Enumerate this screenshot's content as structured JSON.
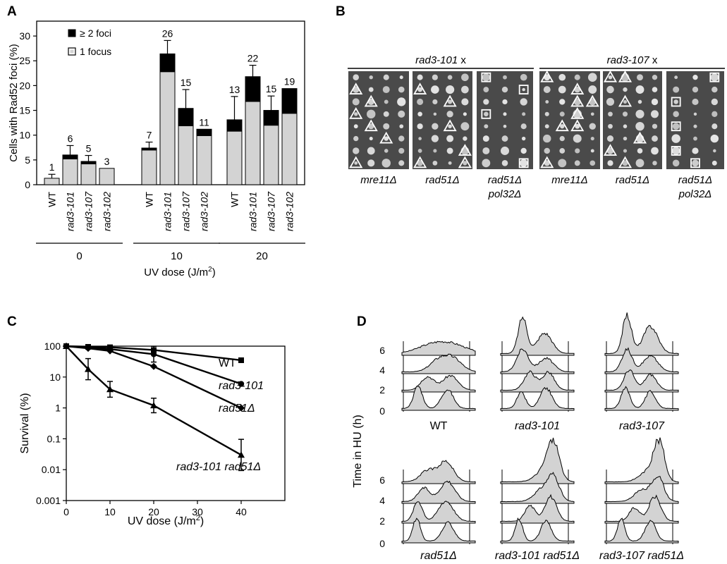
{
  "panel_letters": [
    "A",
    "B",
    "C",
    "D"
  ],
  "chart_data": [
    {
      "panel": "A",
      "type": "bar",
      "ylabel": "Cells with Rad52 foci (%)",
      "xlabel": "UV dose (J/m",
      "xlabel_sup": "2",
      "xlabel_close": ")",
      "ylim": [
        0,
        33
      ],
      "yticks": [
        0,
        5,
        10,
        15,
        20,
        25,
        30
      ],
      "legend": {
        "position": "top-left",
        "entries": [
          {
            "label": "≥ 2 foci",
            "color": "#000000"
          },
          {
            "label": "1 focus",
            "color": "#d3d3d3"
          }
        ]
      },
      "groups": [
        {
          "dose": "0",
          "bars": [
            {
              "strain": "WT",
              "one_focus": 1.3,
              "total": 1.3,
              "error": 0.8,
              "count": "1"
            },
            {
              "strain": "rad3-101",
              "one_focus": 5.2,
              "total": 6.0,
              "error": 1.9,
              "count": "6"
            },
            {
              "strain": "rad3-107",
              "one_focus": 4.2,
              "total": 4.7,
              "error": 1.2,
              "count": "5"
            },
            {
              "strain": "rad3-102",
              "one_focus": 3.3,
              "total": 3.3,
              "error": 0,
              "count": "3"
            }
          ]
        },
        {
          "dose": "10",
          "bars": [
            {
              "strain": "WT",
              "one_focus": 7.0,
              "total": 7.4,
              "error": 1.2,
              "count": "7"
            },
            {
              "strain": "rad3-101",
              "one_focus": 22.8,
              "total": 26.4,
              "error": 2.7,
              "count": "26"
            },
            {
              "strain": "rad3-107",
              "one_focus": 11.9,
              "total": 15.4,
              "error": 3.8,
              "count": "15"
            },
            {
              "strain": "rad3-102",
              "one_focus": 9.9,
              "total": 11.2,
              "error": 0,
              "count": "11"
            }
          ]
        },
        {
          "dose": "20",
          "bars": [
            {
              "strain": "WT",
              "one_focus": 10.8,
              "total": 13.1,
              "error": 4.7,
              "count": "13"
            },
            {
              "strain": "rad3-101",
              "one_focus": 16.8,
              "total": 21.8,
              "error": 2.3,
              "count": "22"
            },
            {
              "strain": "rad3-107",
              "one_focus": 12.0,
              "total": 15.0,
              "error": 2.9,
              "count": "15"
            },
            {
              "strain": "rad3-102",
              "one_focus": 14.4,
              "total": 19.4,
              "error": 0,
              "count": "19"
            }
          ]
        }
      ]
    },
    {
      "panel": "C",
      "type": "line",
      "ylabel": "Survival (%)",
      "xlabel": "UV dose (J/m",
      "xlabel_sup": "2",
      "xlabel_close": ")",
      "yscale": "log",
      "ylim": [
        0.001,
        100
      ],
      "yticks": [
        0.001,
        0.01,
        0.1,
        1,
        10,
        100
      ],
      "ytick_labels": [
        "0.001",
        "0.01",
        "0.1",
        "1",
        "10",
        "100"
      ],
      "xlim": [
        0,
        50
      ],
      "xticks": [
        0,
        10,
        20,
        30,
        40
      ],
      "series": [
        {
          "name": "WT",
          "marker": "square",
          "x": [
            0,
            5,
            10,
            20,
            40
          ],
          "y": [
            100,
            95,
            92,
            75,
            35
          ],
          "err": [
            0,
            0,
            0,
            0,
            0
          ]
        },
        {
          "name": "rad3-101",
          "marker": "circle",
          "x": [
            0,
            5,
            10,
            20,
            40
          ],
          "y": [
            100,
            90,
            80,
            55,
            6
          ],
          "err": [
            0,
            0,
            0,
            0.2,
            0
          ]
        },
        {
          "name": "rad51Δ",
          "marker": "diamond",
          "x": [
            0,
            5,
            10,
            20,
            40
          ],
          "y": [
            100,
            85,
            70,
            22,
            1
          ],
          "err": [
            0,
            0,
            0,
            0,
            0
          ]
        },
        {
          "name": "rad3-101 rad51Δ",
          "marker": "triangle",
          "x": [
            0,
            5,
            10,
            20,
            40
          ],
          "y": [
            100,
            18,
            4,
            1.2,
            0.03
          ],
          "err": [
            0,
            0.3,
            0.2,
            0.18,
            0.55
          ]
        }
      ]
    }
  ],
  "panel_b": {
    "groups": [
      {
        "label": "rad3-101",
        "suffix": " x"
      },
      {
        "label": "rad3-107",
        "suffix": " x"
      }
    ],
    "plates": [
      {
        "label": "mre11Δ",
        "cols": 4,
        "marks": [
          [
            "t",
            0,
            1
          ],
          [
            "t",
            1,
            2
          ],
          [
            "t",
            0,
            3
          ],
          [
            "t",
            1,
            4
          ],
          [
            "t",
            2,
            5
          ],
          [
            "t",
            0,
            7
          ]
        ]
      },
      {
        "label": "rad51Δ",
        "cols": 4,
        "marks": [
          [
            "t",
            0,
            1
          ],
          [
            "t",
            2,
            2
          ],
          [
            "t",
            2,
            4
          ],
          [
            "t",
            3,
            6
          ],
          [
            "t",
            0,
            7
          ],
          [
            "t",
            3,
            7
          ]
        ]
      },
      {
        "label": "rad51Δ",
        "label2": "pol32Δ",
        "cols": 3,
        "marks": [
          [
            "s",
            0,
            0
          ],
          [
            "s",
            2,
            1
          ],
          [
            "s",
            0,
            3
          ],
          [
            "s",
            2,
            7
          ]
        ]
      },
      {
        "label": "mre11Δ",
        "cols": 4,
        "marks": [
          [
            "t",
            0,
            0
          ],
          [
            "t",
            2,
            1
          ],
          [
            "t",
            2,
            2
          ],
          [
            "t",
            3,
            2
          ],
          [
            "t",
            2,
            3
          ],
          [
            "t",
            1,
            4
          ],
          [
            "t",
            2,
            4
          ],
          [
            "t",
            0,
            7
          ]
        ]
      },
      {
        "label": "rad51Δ",
        "cols": 4,
        "marks": [
          [
            "t",
            0,
            0
          ],
          [
            "t",
            1,
            0
          ],
          [
            "t",
            1,
            2
          ],
          [
            "t",
            2,
            5
          ],
          [
            "t",
            0,
            6
          ],
          [
            "t",
            1,
            7
          ]
        ]
      },
      {
        "label": "rad51Δ",
        "label2": "pol32Δ",
        "cols": 3,
        "marks": [
          [
            "s",
            2,
            0
          ],
          [
            "s",
            0,
            2
          ],
          [
            "s",
            0,
            4
          ],
          [
            "s",
            0,
            6
          ],
          [
            "s",
            1,
            7
          ]
        ]
      }
    ]
  },
  "panel_d": {
    "ylabel": "Time in HU (h)",
    "time_labels": [
      "0",
      "2",
      "4",
      "6"
    ],
    "strains": [
      "WT",
      "rad3-101",
      "rad3-107",
      "rad51Δ",
      "rad3-101 rad51Δ",
      "rad3-107 rad51Δ"
    ]
  }
}
